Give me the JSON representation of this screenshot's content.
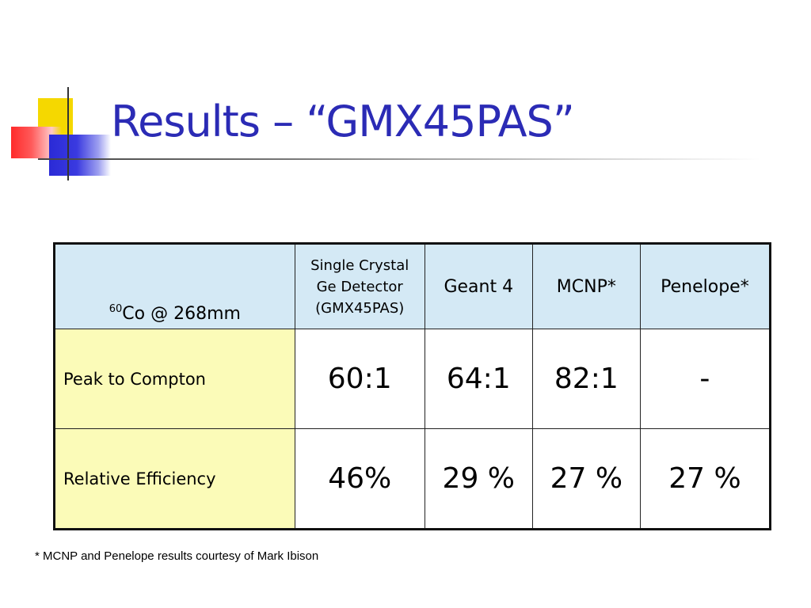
{
  "slide": {
    "title": "Results – “GMX45PAS”",
    "footnote": "* MCNP and Penelope results courtesy of Mark Ibison"
  },
  "table": {
    "corner": {
      "isotope_mass": "60",
      "label": "Co @ 268mm"
    },
    "columns": [
      {
        "line1": "Single Crystal",
        "line2": "Ge Detector",
        "line3": "(GMX45PAS)"
      },
      {
        "label": "Geant 4"
      },
      {
        "label": "MCNP*"
      },
      {
        "label": "Penelope*"
      }
    ],
    "rows": [
      {
        "label": "Peak to Compton",
        "values": [
          "60:1",
          "64:1",
          "82:1",
          "-"
        ]
      },
      {
        "label": "Relative Efficiency",
        "values": [
          "46%",
          "29 %",
          "27 %",
          "27 %"
        ]
      }
    ]
  },
  "colors": {
    "title": "#2b2bb5",
    "header_bg": "#d4e9f5",
    "row_label_bg": "#fbfbb8"
  }
}
